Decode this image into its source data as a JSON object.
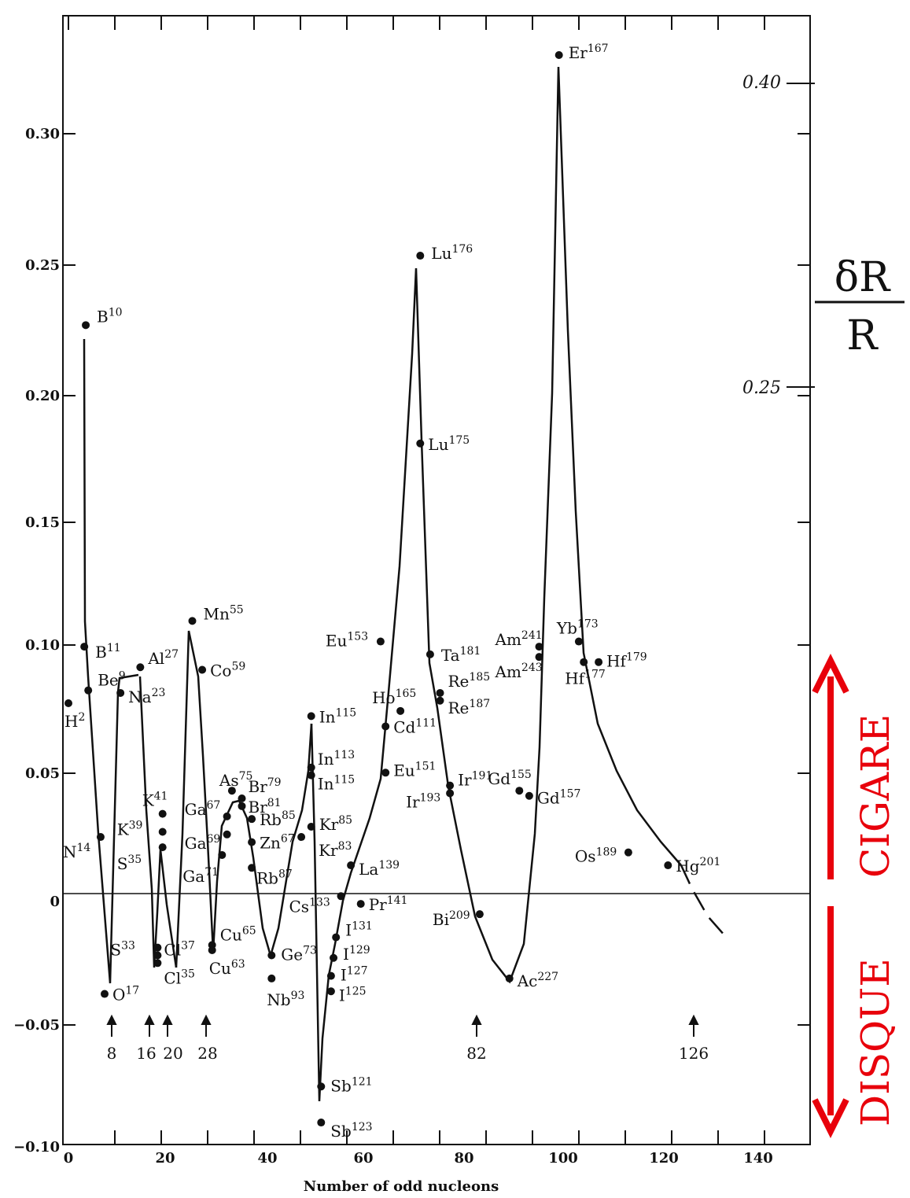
{
  "chart_data": {
    "type": "scatter",
    "xlabel": "Number of odd nucleons",
    "ylabel": "",
    "xlim": [
      0,
      150
    ],
    "ylim": [
      -0.1,
      0.335
    ],
    "x_ticks": [
      "0",
      "20",
      "40",
      "60",
      "80",
      "100",
      "120",
      "140"
    ],
    "y_ticks": [
      "0.30",
      "0.25",
      "0.20",
      "0.15",
      "0.10",
      "0.05",
      "0",
      "−0.05",
      "−0.10"
    ],
    "points": [
      {
        "name": "H",
        "mass": "2",
        "x": 0,
        "y": 0.074
      },
      {
        "name": "B",
        "mass": "10",
        "x": 3.5,
        "y": 0.221
      },
      {
        "name": "B",
        "mass": "11",
        "x": 3.2,
        "y": 0.096
      },
      {
        "name": "Be",
        "mass": "9",
        "x": 4,
        "y": 0.079
      },
      {
        "name": "N",
        "mass": "14",
        "x": 6.5,
        "y": 0.022
      },
      {
        "name": "O",
        "mass": "17",
        "x": 7.3,
        "y": -0.039
      },
      {
        "name": "Na",
        "mass": "23",
        "x": 10.5,
        "y": 0.078
      },
      {
        "name": "Al",
        "mass": "27",
        "x": 14.5,
        "y": 0.088
      },
      {
        "name": "K",
        "mass": "41",
        "x": 19,
        "y": 0.031
      },
      {
        "name": "K",
        "mass": "39",
        "x": 19,
        "y": 0.024
      },
      {
        "name": "S",
        "mass": "35",
        "x": 19,
        "y": 0.018
      },
      {
        "name": "S",
        "mass": "33",
        "x": 18,
        "y": -0.021
      },
      {
        "name": "Cl",
        "mass": "37",
        "x": 18,
        "y": -0.024
      },
      {
        "name": "Cl",
        "mass": "35",
        "x": 18,
        "y": -0.027
      },
      {
        "name": "Mn",
        "mass": "55",
        "x": 25,
        "y": 0.106
      },
      {
        "name": "Co",
        "mass": "59",
        "x": 27,
        "y": 0.087
      },
      {
        "name": "Ga",
        "mass": "67",
        "x": 32,
        "y": 0.03
      },
      {
        "name": "Ga",
        "mass": "69",
        "x": 32,
        "y": 0.023
      },
      {
        "name": "Ga",
        "mass": "71",
        "x": 31,
        "y": 0.015
      },
      {
        "name": "Cu",
        "mass": "65",
        "x": 29,
        "y": -0.02
      },
      {
        "name": "Cu",
        "mass": "63",
        "x": 29,
        "y": -0.022
      },
      {
        "name": "As",
        "mass": "75",
        "x": 33,
        "y": 0.04
      },
      {
        "name": "Br",
        "mass": "79",
        "x": 35,
        "y": 0.037
      },
      {
        "name": "Br",
        "mass": "81",
        "x": 35,
        "y": 0.034
      },
      {
        "name": "Rb",
        "mass": "85",
        "x": 37,
        "y": 0.029
      },
      {
        "name": "Zn",
        "mass": "67",
        "x": 37,
        "y": 0.02
      },
      {
        "name": "Rb",
        "mass": "87",
        "x": 37,
        "y": 0.01
      },
      {
        "name": "Ge",
        "mass": "73",
        "x": 41,
        "y": -0.024
      },
      {
        "name": "Nb",
        "mass": "93",
        "x": 41,
        "y": -0.033
      },
      {
        "name": "In",
        "mass": "115",
        "x": 49,
        "y": 0.069
      },
      {
        "name": "In",
        "mass": "113",
        "x": 49,
        "y": 0.049
      },
      {
        "name": "In",
        "mass": "115",
        "x": 49,
        "y": 0.046
      },
      {
        "name": "Kr",
        "mass": "85",
        "x": 49,
        "y": 0.026
      },
      {
        "name": "Kr",
        "mass": "83",
        "x": 47,
        "y": 0.022
      },
      {
        "name": "La",
        "mass": "139",
        "x": 57,
        "y": 0.011
      },
      {
        "name": "Cs",
        "mass": "133",
        "x": 55,
        "y": -0.001
      },
      {
        "name": "Pr",
        "mass": "141",
        "x": 59,
        "y": -0.004
      },
      {
        "name": "I",
        "mass": "131",
        "x": 54,
        "y": -0.017
      },
      {
        "name": "I",
        "mass": "129",
        "x": 53.5,
        "y": -0.025
      },
      {
        "name": "I",
        "mass": "127",
        "x": 53,
        "y": -0.032
      },
      {
        "name": "I",
        "mass": "125",
        "x": 53,
        "y": -0.038
      },
      {
        "name": "Sb",
        "mass": "121",
        "x": 51,
        "y": -0.075
      },
      {
        "name": "Sb",
        "mass": "123",
        "x": 51,
        "y": -0.089
      },
      {
        "name": "Eu",
        "mass": "153",
        "x": 63,
        "y": 0.098
      },
      {
        "name": "Ho",
        "mass": "165",
        "x": 67,
        "y": 0.071
      },
      {
        "name": "Cd",
        "mass": "111",
        "x": 64,
        "y": 0.065
      },
      {
        "name": "Eu",
        "mass": "151",
        "x": 64,
        "y": 0.047
      },
      {
        "name": "Lu",
        "mass": "176",
        "x": 71,
        "y": 0.248
      },
      {
        "name": "Lu",
        "mass": "175",
        "x": 71,
        "y": 0.175
      },
      {
        "name": "Ta",
        "mass": "181",
        "x": 73,
        "y": 0.093
      },
      {
        "name": "Re",
        "mass": "185",
        "x": 75,
        "y": 0.078
      },
      {
        "name": "Re",
        "mass": "187",
        "x": 75,
        "y": 0.075
      },
      {
        "name": "Ir",
        "mass": "191",
        "x": 77,
        "y": 0.042
      },
      {
        "name": "Ir",
        "mass": "193",
        "x": 77,
        "y": 0.039
      },
      {
        "name": "Bi",
        "mass": "209",
        "x": 83,
        "y": -0.008
      },
      {
        "name": "Ac",
        "mass": "227",
        "x": 89,
        "y": -0.033
      },
      {
        "name": "Gd",
        "mass": "155",
        "x": 91,
        "y": 0.04
      },
      {
        "name": "Gd",
        "mass": "157",
        "x": 93,
        "y": 0.038
      },
      {
        "name": "Am",
        "mass": "241",
        "x": 95,
        "y": 0.096
      },
      {
        "name": "Am",
        "mass": "243",
        "x": 95,
        "y": 0.092
      },
      {
        "name": "Er",
        "mass": "167",
        "x": 99,
        "y": 0.326
      },
      {
        "name": "Yb",
        "mass": "173",
        "x": 103,
        "y": 0.098
      },
      {
        "name": "Hf",
        "mass": "177",
        "x": 104,
        "y": 0.09
      },
      {
        "name": "Hf",
        "mass": "179",
        "x": 107,
        "y": 0.09
      },
      {
        "name": "Os",
        "mass": "189",
        "x": 113,
        "y": 0.016
      },
      {
        "name": "Hg",
        "mass": "201",
        "x": 121,
        "y": 0.011
      }
    ],
    "magic_numbers": [
      "8",
      "16",
      "20",
      "28",
      "82",
      "126"
    ],
    "right_axis": {
      "ticks": [
        "0.40",
        "0.25"
      ],
      "label_numerator": "δR",
      "label_denominator": "R"
    },
    "annotations": {
      "up": "CIGARE",
      "down": "DISQUE"
    },
    "colors": {
      "ink": "#111111",
      "red": "#e8000b"
    }
  }
}
